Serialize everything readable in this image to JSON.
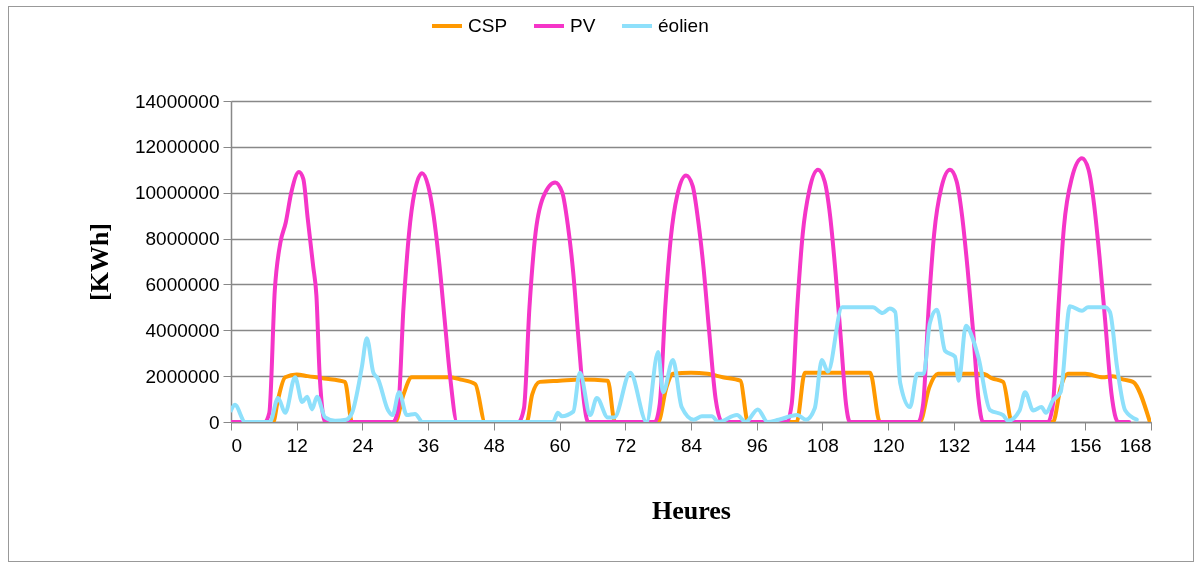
{
  "chart_data": {
    "type": "line",
    "xlabel": "Heures",
    "ylabel": "[KWh]",
    "xlim": [
      0,
      168
    ],
    "xticks": [
      0,
      12,
      24,
      36,
      48,
      60,
      72,
      84,
      96,
      108,
      120,
      132,
      144,
      156,
      168
    ],
    "ylim": [
      0,
      14000000
    ],
    "yticks": [
      0,
      2000000,
      4000000,
      6000000,
      8000000,
      10000000,
      12000000,
      14000000
    ],
    "grid": "y",
    "legend": "top",
    "line_style": "solid",
    "marker": "none",
    "series": [
      {
        "name": "CSP",
        "color": "#ff9900",
        "x": [
          0,
          7.7,
          8.6,
          9.9,
          12,
          14,
          17,
          20.8,
          22.1,
          30,
          31.5,
          33,
          36,
          40,
          42,
          44.6,
          46.4,
          54,
          55,
          56.4,
          60,
          64,
          68.8,
          70.1,
          78,
          79.5,
          80.7,
          84,
          87,
          89.8,
          93,
          94.4,
          103.3,
          104.8,
          110,
          116.7,
          118.5,
          125.8,
          127.5,
          129.1,
          133,
          137.3,
          139,
          141,
          142.6,
          150.1,
          151.5,
          152.8,
          156,
          159.2,
          161,
          163,
          164.7,
          167.8
        ],
        "values": [
          0,
          0,
          1000000,
          1950000,
          2070000,
          2000000,
          1900000,
          1750000,
          0,
          0,
          1200000,
          1950000,
          1950000,
          1950000,
          1850000,
          1650000,
          0,
          0,
          1200000,
          1750000,
          1800000,
          1850000,
          1800000,
          0,
          0,
          1500000,
          2100000,
          2150000,
          2100000,
          1950000,
          1800000,
          0,
          0,
          2150000,
          2150000,
          2150000,
          0,
          0,
          1500000,
          2100000,
          2100000,
          2100000,
          1900000,
          1750000,
          0,
          0,
          1500000,
          2100000,
          2100000,
          1950000,
          2000000,
          1850000,
          1750000,
          0
        ]
      },
      {
        "name": "PV",
        "color": "#f535c8",
        "x": [
          0,
          6.2,
          7,
          8,
          9,
          10,
          11,
          12.4,
          13.2,
          14,
          15,
          15.6,
          16.2,
          17.2,
          29.6,
          30.5,
          31.5,
          32.5,
          33.5,
          34.9,
          36,
          37,
          38,
          39,
          40,
          41.3,
          52.5,
          53.5,
          54.5,
          55.5,
          57,
          59.2,
          60.5,
          61.5,
          62.5,
          63.5,
          64.5,
          65.2,
          77.4,
          78.3,
          79.3,
          80.3,
          81.5,
          83.1,
          84.3,
          85.3,
          86.3,
          87.3,
          88.5,
          89.7,
          101.5,
          102.4,
          103.4,
          104.4,
          105.6,
          107.2,
          108.4,
          109.4,
          110.4,
          111.4,
          112.3,
          113,
          125.5,
          126.4,
          127.4,
          128.4,
          129.7,
          131.3,
          132.5,
          133.5,
          134.5,
          135.5,
          136.5,
          137.3,
          149.2,
          150.1,
          151.1,
          152.1,
          153.5,
          155.4,
          156.6,
          157.6,
          158.6,
          159.6,
          160.8,
          162,
          164
        ],
        "values": [
          0,
          0,
          400000,
          5750000,
          7800000,
          8700000,
          10000000,
          10900000,
          10600000,
          8900000,
          6800000,
          5500000,
          2000000,
          0,
          0,
          500000,
          5000000,
          8200000,
          10000000,
          10850000,
          10300000,
          9000000,
          7000000,
          4500000,
          2000000,
          0,
          0,
          600000,
          5000000,
          8000000,
          9800000,
          10450000,
          10000000,
          8600000,
          6500000,
          3500000,
          800000,
          0,
          0,
          800000,
          5000000,
          8000000,
          9900000,
          10750000,
          10300000,
          8800000,
          6700000,
          4000000,
          1000000,
          0,
          0,
          800000,
          5000000,
          8200000,
          10100000,
          11000000,
          10500000,
          9000000,
          6500000,
          3500000,
          800000,
          0,
          0,
          800000,
          5000000,
          8200000,
          10200000,
          11000000,
          10500000,
          9000000,
          6700000,
          4000000,
          1000000,
          0,
          0,
          800000,
          5000000,
          8500000,
          10600000,
          11500000,
          11000000,
          9500000,
          7200000,
          4500000,
          1200000,
          0,
          0
        ]
      },
      {
        "name": "éolien",
        "color": "#8ee0fb",
        "x": [
          0,
          0.7,
          2.6,
          7.1,
          8.6,
          9.9,
          11.7,
          13,
          13.9,
          14.8,
          15.7,
          17.2,
          19,
          21,
          22.1,
          23.9,
          24.8,
          26,
          26.8,
          28.7,
          29.5,
          30.7,
          32.1,
          33.6,
          35,
          57,
          58.8,
          59.7,
          60.4,
          62.5,
          63.7,
          65.6,
          66.8,
          68.8,
          70,
          72.9,
          75.9,
          78,
          78.9,
          80.7,
          82.3,
          84.5,
          86,
          87.8,
          89,
          92.4,
          94,
          96.2,
          98,
          100,
          103.4,
          105,
          106.6,
          107.9,
          109,
          111.6,
          117.2,
          119,
          120.3,
          121.3,
          122.2,
          124,
          125.3,
          126.5,
          127.6,
          128.9,
          130.4,
          132.2,
          132.9,
          134.2,
          135.5,
          136.5,
          138.6,
          141,
          141.9,
          144,
          145,
          146.5,
          148,
          148.8,
          150.1,
          151.5,
          153.2,
          155.4,
          156.5,
          159.6,
          160.5,
          161.8,
          163.3,
          165.4
        ],
        "values": [
          500000,
          750000,
          0,
          0,
          1050000,
          400000,
          1950000,
          870000,
          1100000,
          550000,
          1100000,
          200000,
          50000,
          100000,
          400000,
          2400000,
          3650000,
          2150000,
          1900000,
          500000,
          300000,
          1300000,
          300000,
          350000,
          0,
          0,
          0,
          400000,
          250000,
          450000,
          2150000,
          300000,
          1050000,
          200000,
          200000,
          2150000,
          0,
          3050000,
          1300000,
          2700000,
          650000,
          100000,
          250000,
          250000,
          0,
          300000,
          0,
          550000,
          0,
          100000,
          300000,
          100000,
          600000,
          2700000,
          2200000,
          5000000,
          5000000,
          4750000,
          4950000,
          4800000,
          1700000,
          650000,
          2100000,
          2100000,
          4300000,
          4900000,
          3100000,
          2850000,
          1800000,
          4200000,
          3600000,
          2800000,
          520000,
          300000,
          50000,
          500000,
          1300000,
          500000,
          650000,
          400000,
          950000,
          1300000,
          5050000,
          4850000,
          5000000,
          5000000,
          4800000,
          2400000,
          500000,
          100000
        ]
      }
    ]
  }
}
